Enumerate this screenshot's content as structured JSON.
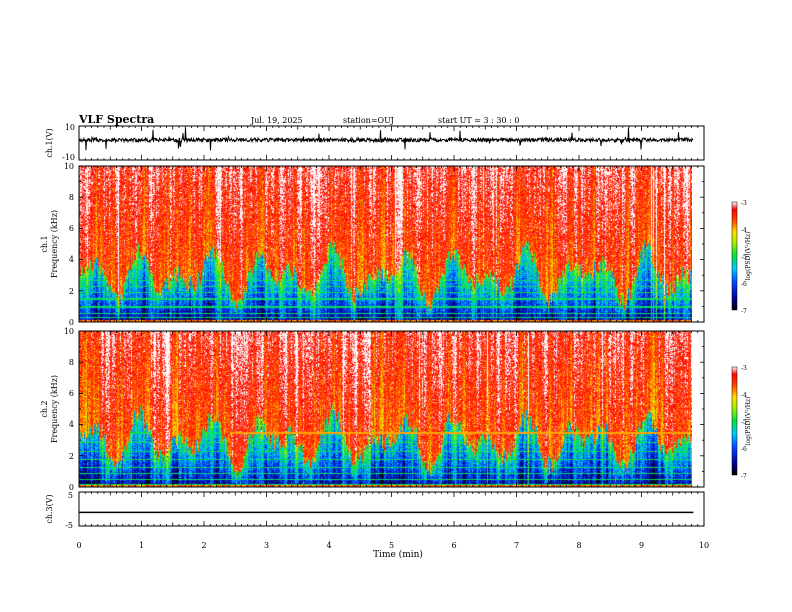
{
  "header": {
    "title": "VLF Spectra",
    "date": "Jul. 19, 2025",
    "station": "station=OUJ",
    "start": "start UT =  3 : 30 : 0"
  },
  "chart_data": [
    {
      "type": "line",
      "id": "ch1-waveform",
      "ylabel": "ch.1(V)",
      "ylim": [
        -10,
        10
      ],
      "yticks": [
        "10",
        "-10"
      ],
      "xlim": [
        0,
        9.83
      ],
      "description_of_trace": "noisy black trace centred near +2 V with spikes"
    },
    {
      "type": "heatmap",
      "id": "ch1-spectrogram",
      "ylabel": "ch.1\nFrequency (kHz)",
      "ylabel_top": "ch.1",
      "ylabel_bottom": "Frequency (kHz)",
      "ylim": [
        0,
        10
      ],
      "yticks": [
        "0",
        "2",
        "4",
        "6",
        "8",
        "10"
      ],
      "xlim": [
        0,
        9.83
      ],
      "colorbar": {
        "label": "log(PSD)(V²/Hz)",
        "ticks": [
          "-3",
          "-4",
          "-5",
          "-6",
          "-7"
        ],
        "range": [
          -7,
          -3
        ]
      }
    },
    {
      "type": "heatmap",
      "id": "ch2-spectrogram",
      "ylabel_top": "ch.2",
      "ylabel_bottom": "Frequency (kHz)",
      "ylim": [
        0,
        10
      ],
      "yticks": [
        "0",
        "2",
        "4",
        "6",
        "8",
        "10"
      ],
      "xlim": [
        0,
        9.83
      ],
      "colorbar": {
        "label": "log(PSD)(V²/Hz)",
        "ticks": [
          "-3",
          "-4",
          "-5",
          "-6",
          "-7"
        ],
        "range": [
          -7,
          -3
        ]
      }
    },
    {
      "type": "line",
      "id": "ch3-waveform",
      "ylabel": "ch.3(V)",
      "ylim": [
        -5,
        5
      ],
      "yticks": [
        "5",
        "-5"
      ],
      "x": [
        0,
        9.83
      ],
      "y": [
        -1,
        -1
      ]
    }
  ],
  "xaxis": {
    "label": "Time (min)",
    "range": [
      0,
      10
    ],
    "ticks": [
      "0",
      "1",
      "2",
      "3",
      "4",
      "5",
      "6",
      "7",
      "8",
      "9",
      "10"
    ]
  }
}
